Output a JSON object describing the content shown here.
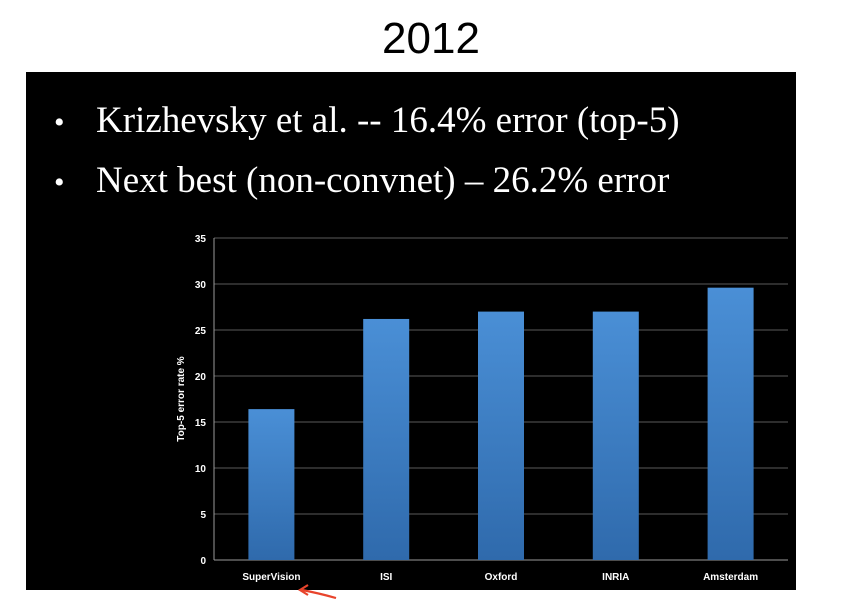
{
  "page_title": "2012",
  "slide": {
    "bullets": [
      "Krizhevsky et al. -- 16.4% error (top-5)",
      "Next best (non-convnet) – 26.2% error"
    ],
    "bullet_symbol": "•"
  },
  "colors": {
    "slide_background": "#000000",
    "bar": "#3d7dc4",
    "arrow": "#e8442c"
  },
  "chart_data": {
    "type": "bar",
    "categories": [
      "SuperVision",
      "ISI",
      "Oxford",
      "INRIA",
      "Amsterdam"
    ],
    "values": [
      16.4,
      26.2,
      27.0,
      27.0,
      29.6
    ],
    "title": "",
    "xlabel": "",
    "ylabel": "Top-5 error rate %",
    "ylim": [
      0,
      35
    ],
    "yticks": [
      0,
      5,
      10,
      15,
      20,
      25,
      30,
      35
    ],
    "grid": true,
    "legend": "none"
  },
  "annotation": {
    "arrow_target": "SuperVision",
    "icon": "arrow-icon"
  }
}
